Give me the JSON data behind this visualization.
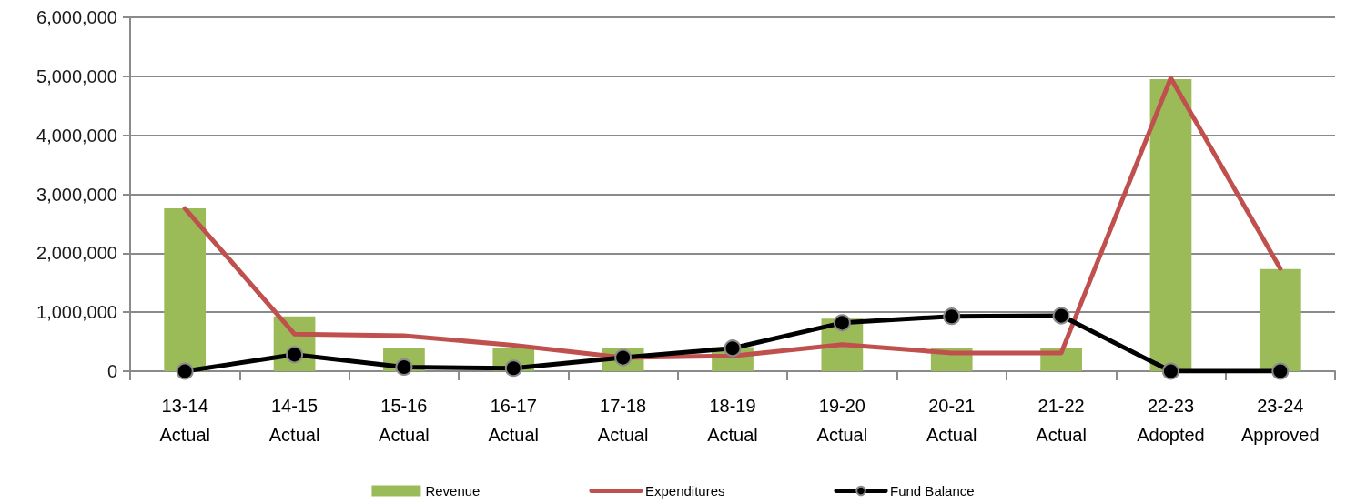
{
  "chart_data": {
    "type": "bar",
    "categories": [
      "13-14\nActual",
      "14-15\nActual",
      "15-16\nActual",
      "16-17\nActual",
      "17-18\nActual",
      "18-19\nActual",
      "19-20\nActual",
      "20-21\nActual",
      "21-22\nActual",
      "22-23\nAdopted",
      "23-24\nApproved"
    ],
    "series": [
      {
        "name": "Revenue",
        "color": "#9bbb59",
        "values": [
          2760000,
          930000,
          390000,
          390000,
          390000,
          410000,
          890000,
          390000,
          390000,
          4950000,
          1730000
        ]
      },
      {
        "name": "Expenditures",
        "type": "line",
        "color": "#c0504d",
        "marker": "none",
        "values": [
          2760000,
          630000,
          600000,
          440000,
          230000,
          260000,
          450000,
          310000,
          310000,
          4970000,
          1740000
        ]
      },
      {
        "name": "Fund Balance",
        "type": "line",
        "color": "#000000",
        "marker": "circle",
        "values": [
          0,
          280000,
          70000,
          50000,
          230000,
          390000,
          820000,
          930000,
          940000,
          0,
          0
        ]
      }
    ],
    "ylim": [
      0,
      6000000
    ],
    "yticks": [
      0,
      {
        "value": 1000000,
        "label": "1,000,000"
      },
      {
        "value": 2000000,
        "label": "2,000,000"
      },
      {
        "value": 3000000,
        "label": "3,000,000"
      },
      {
        "value": 4000000,
        "label": "4,000,000"
      },
      {
        "value": 5000000,
        "label": "5,000,000"
      },
      {
        "value": 6000000,
        "label": "6,000,000"
      }
    ],
    "grid": "y",
    "legend": "bottom"
  }
}
